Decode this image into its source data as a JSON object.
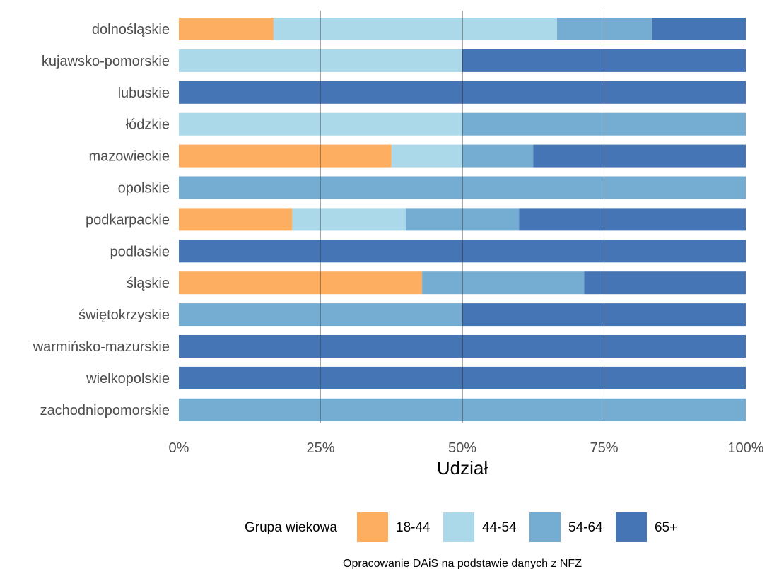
{
  "chart_data": {
    "type": "bar",
    "orientation": "horizontal",
    "stacked": "percent",
    "categories": [
      "dolnośląskie",
      "kujawsko-pomorskie",
      "lubuskie",
      "łódzkie",
      "mazowieckie",
      "opolskie",
      "podkarpackie",
      "podlaskie",
      "śląskie",
      "świętokrzyskie",
      "warmińsko-mazurskie",
      "wielkopolskie",
      "zachodniopomorskie"
    ],
    "series": [
      {
        "name": "18-44",
        "color": "#fdae61",
        "values": [
          16.7,
          0,
          0,
          0,
          37.5,
          0,
          20,
          0,
          42.9,
          0,
          0,
          0,
          0
        ]
      },
      {
        "name": "44-54",
        "color": "#abd9e9",
        "values": [
          50,
          50,
          0,
          50,
          12.5,
          0,
          20,
          0,
          0,
          0,
          0,
          0,
          0
        ]
      },
      {
        "name": "54-64",
        "color": "#74add1",
        "values": [
          16.7,
          0,
          0,
          50,
          12.5,
          100,
          20,
          0,
          28.6,
          50,
          0,
          0,
          100
        ]
      },
      {
        "name": "65+",
        "color": "#4575b4",
        "values": [
          16.6,
          50,
          100,
          0,
          37.5,
          0,
          40,
          100,
          28.5,
          50,
          100,
          100,
          0
        ]
      }
    ],
    "xlabel": "Udział",
    "ylabel": "",
    "xlim": [
      0,
      100
    ],
    "xticks": [
      "0%",
      "25%",
      "50%",
      "75%",
      "100%"
    ],
    "grid": true,
    "legend": {
      "title": "Grupa wiekowa",
      "position": "bottom"
    },
    "caption": "Opracowanie DAiS na podstawie danych z NFZ"
  }
}
